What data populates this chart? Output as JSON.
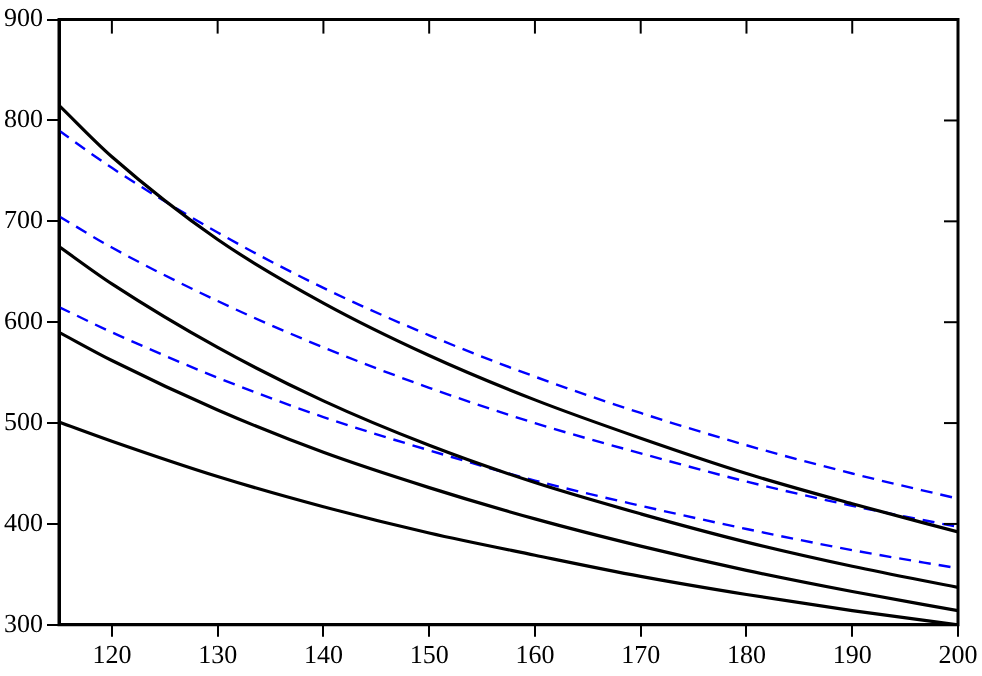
{
  "chart_data": {
    "type": "line",
    "x": [
      115,
      120,
      130,
      140,
      150,
      160,
      170,
      180,
      190,
      200
    ],
    "series": [
      {
        "color": "#000000",
        "line_style": "solid",
        "values": [
          815,
          764,
          682,
          619,
          567,
          523,
          485,
          450,
          420,
          392
        ]
      },
      {
        "color": "#0000ff",
        "line_style": "dashed",
        "values": [
          790,
          753,
          689,
          634,
          587,
          546,
          510,
          478,
          450,
          425
        ]
      },
      {
        "color": "#0000ff",
        "line_style": "dashed",
        "values": [
          705,
          674,
          621,
          575,
          535,
          500,
          470,
          442,
          418,
          397
        ]
      },
      {
        "color": "#000000",
        "line_style": "solid",
        "values": [
          675,
          638,
          575,
          522,
          478,
          441,
          410,
          382,
          358,
          337
        ]
      },
      {
        "color": "#0000ff",
        "line_style": "dashed",
        "values": [
          615,
          590,
          545,
          506,
          473,
          443,
          418,
          395,
          374,
          356
        ]
      },
      {
        "color": "#000000",
        "line_style": "solid",
        "values": [
          590,
          562,
          513,
          471,
          436,
          405,
          378,
          354,
          333,
          314
        ]
      },
      {
        "color": "#000000",
        "line_style": "solid",
        "values": [
          501,
          482,
          447,
          417,
          391,
          369,
          348,
          330,
          314,
          300
        ]
      }
    ],
    "xlim": [
      115,
      200
    ],
    "xticks": [
      120,
      130,
      140,
      150,
      160,
      170,
      180,
      190,
      200
    ],
    "ylim": [
      300,
      900
    ],
    "yticks": [
      300,
      400,
      500,
      600,
      700,
      800,
      900
    ],
    "grid": false,
    "legend": false,
    "marker": "none"
  }
}
